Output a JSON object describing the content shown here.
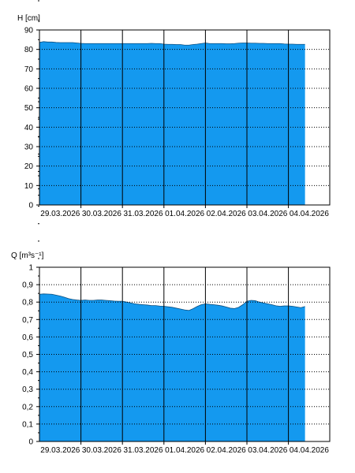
{
  "colors": {
    "fill": "#1499ef",
    "axis": "#000000",
    "grid": "#000000",
    "background": "#ffffff"
  },
  "chart_data": [
    {
      "type": "area",
      "ylabel": "H [cm]",
      "ylim": [
        0,
        90
      ],
      "y_ticks": [
        0,
        10,
        20,
        30,
        40,
        50,
        60,
        70,
        80,
        90
      ],
      "x_tick_labels": [
        "29.03.2026",
        "30.03.2026",
        "31.03.2026",
        "01.04.2026",
        "02.04.2026",
        "03.04.2026",
        "04.04.2026"
      ],
      "grid": true,
      "series": [
        {
          "x": [
            0,
            0.1,
            0.2,
            0.3,
            0.4,
            0.5,
            0.6,
            0.7,
            0.8,
            0.9,
            1.0,
            1.1,
            1.2,
            1.3,
            1.4,
            1.5,
            1.6,
            1.7,
            1.8,
            1.9,
            2.0,
            2.1,
            2.2,
            2.3,
            2.4,
            2.5,
            2.6,
            2.7,
            2.8,
            2.9,
            3.0,
            3.1,
            3.2,
            3.3,
            3.4,
            3.5,
            3.6,
            3.7,
            3.8,
            3.9,
            4.0,
            4.1,
            4.2,
            4.3,
            4.4,
            4.5,
            4.6,
            4.7,
            4.8,
            4.9,
            5.0,
            5.1,
            5.2,
            5.3,
            5.4,
            5.5,
            5.6,
            5.7,
            5.8,
            5.9,
            6.0,
            6.1,
            6.2,
            6.3,
            6.4
          ],
          "values": [
            83.6,
            84.0,
            83.8,
            83.8,
            83.6,
            83.5,
            83.5,
            83.5,
            83.5,
            83.3,
            83.1,
            83.0,
            83.0,
            83.0,
            83.0,
            83.0,
            83.0,
            83.0,
            83.0,
            83.0,
            83.0,
            83.0,
            83.0,
            83.0,
            83.0,
            83.0,
            83.0,
            83.1,
            83.0,
            83.0,
            82.7,
            82.6,
            82.6,
            82.5,
            82.5,
            82.2,
            82.2,
            82.5,
            82.7,
            83.0,
            83.3,
            83.0,
            83.0,
            83.0,
            83.0,
            82.9,
            82.9,
            83.0,
            83.2,
            83.3,
            83.3,
            83.2,
            83.2,
            83.1,
            83.1,
            83.0,
            83.0,
            83.0,
            83.0,
            82.8,
            82.7,
            82.7,
            82.6,
            82.6,
            82.6
          ]
        }
      ]
    },
    {
      "type": "area",
      "ylabel": "Q [m³s⁻¹]",
      "ylim": [
        0,
        1
      ],
      "y_ticks": [
        "0",
        "0,1",
        "0,2",
        "0,3",
        "0,4",
        "0,5",
        "0,6",
        "0,7",
        "0,8",
        "0,9",
        "1"
      ],
      "x_tick_labels": [
        "29.03.2026",
        "30.03.2026",
        "31.03.2026",
        "01.04.2026",
        "02.04.2026",
        "03.04.2026",
        "04.04.2026"
      ],
      "grid": true,
      "series": [
        {
          "x": [
            0,
            0.1,
            0.2,
            0.3,
            0.4,
            0.5,
            0.6,
            0.7,
            0.8,
            0.9,
            1.0,
            1.1,
            1.2,
            1.3,
            1.4,
            1.5,
            1.6,
            1.7,
            1.8,
            1.9,
            2.0,
            2.1,
            2.2,
            2.3,
            2.4,
            2.5,
            2.6,
            2.7,
            2.8,
            2.9,
            3.0,
            3.1,
            3.2,
            3.3,
            3.4,
            3.5,
            3.6,
            3.7,
            3.8,
            3.9,
            4.0,
            4.1,
            4.2,
            4.3,
            4.4,
            4.5,
            4.6,
            4.7,
            4.8,
            4.9,
            5.0,
            5.1,
            5.2,
            5.3,
            5.4,
            5.5,
            5.6,
            5.7,
            5.8,
            5.9,
            6.0,
            6.1,
            6.2,
            6.3,
            6.4
          ],
          "values": [
            0.845,
            0.847,
            0.846,
            0.845,
            0.84,
            0.835,
            0.828,
            0.82,
            0.815,
            0.812,
            0.81,
            0.812,
            0.81,
            0.81,
            0.812,
            0.812,
            0.81,
            0.808,
            0.806,
            0.805,
            0.805,
            0.8,
            0.795,
            0.79,
            0.787,
            0.785,
            0.783,
            0.78,
            0.78,
            0.777,
            0.776,
            0.773,
            0.77,
            0.765,
            0.76,
            0.755,
            0.752,
            0.762,
            0.775,
            0.785,
            0.79,
            0.787,
            0.785,
            0.782,
            0.778,
            0.772,
            0.765,
            0.763,
            0.77,
            0.785,
            0.805,
            0.81,
            0.808,
            0.8,
            0.795,
            0.79,
            0.785,
            0.779,
            0.776,
            0.778,
            0.778,
            0.776,
            0.772,
            0.768,
            0.775
          ]
        }
      ]
    }
  ]
}
